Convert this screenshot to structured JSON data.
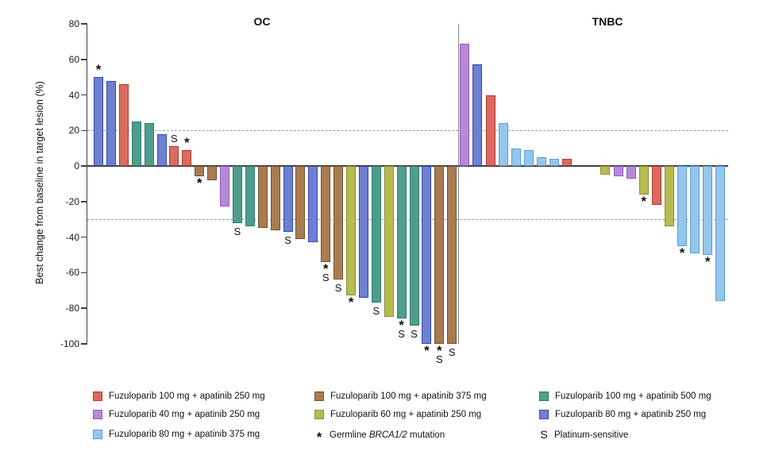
{
  "chart_data": {
    "type": "bar",
    "subtype": "waterfall",
    "ylabel": "Best change from baseline in target lesion (%)",
    "ylim": [
      -100,
      80
    ],
    "yticks": [
      80,
      60,
      40,
      20,
      0,
      -20,
      -40,
      -60,
      -80,
      -100
    ],
    "thresholds_dashed": [
      20,
      -30
    ],
    "grid": "off",
    "legend_position": "bottom",
    "palette": {
      "f100a250": {
        "label": "Fuzuloparib 100 mg + apatinib 250 mg",
        "fill": "#DB6A60",
        "stroke": "#AF3A31"
      },
      "f40a250": {
        "label": "Fuzuloparib 40 mg + apatinib 250 mg",
        "fill": "#B78AD8",
        "stroke": "#9257BE"
      },
      "f80a375": {
        "label": "Fuzuloparib 80 mg + apatinib 375 mg",
        "fill": "#95C6EE",
        "stroke": "#5B9BD5"
      },
      "f100a375": {
        "label": "Fuzuloparib 100 mg + apatinib 375 mg",
        "fill": "#A87C50",
        "stroke": "#73532F"
      },
      "f60a250": {
        "label": "Fuzuloparib 60 mg + apatinib 250 mg",
        "fill": "#B6BB52",
        "stroke": "#8C9130"
      },
      "f100a500": {
        "label": "Fuzuloparib 100 mg + apatinib 500 mg",
        "fill": "#4E9D8E",
        "stroke": "#2F7D6E"
      },
      "f80a250": {
        "label": "Fuzuloparib 80 mg + apatinib 250 mg",
        "fill": "#6E80D1",
        "stroke": "#3647B2"
      }
    },
    "markers": {
      "*": "Germline BRCA1/2 mutation",
      "S": "Platinum-sensitive"
    },
    "groups": [
      {
        "title": "OC",
        "bars": [
          {
            "regimen": "f80a250",
            "value": 50,
            "marks": [
              "*"
            ]
          },
          {
            "regimen": "f80a250",
            "value": 48,
            "marks": []
          },
          {
            "regimen": "f100a250",
            "value": 46,
            "marks": []
          },
          {
            "regimen": "f100a500",
            "value": 25,
            "marks": []
          },
          {
            "regimen": "f100a500",
            "value": 24,
            "marks": []
          },
          {
            "regimen": "f80a250",
            "value": 18,
            "marks": []
          },
          {
            "regimen": "f100a250",
            "value": 11,
            "marks": [
              "S"
            ]
          },
          {
            "regimen": "f100a250",
            "value": 9,
            "marks": [
              "*"
            ]
          },
          {
            "regimen": "f100a375",
            "value": -6,
            "marks": [
              "*"
            ]
          },
          {
            "regimen": "f100a375",
            "value": -8,
            "marks": []
          },
          {
            "regimen": "f40a250",
            "value": -23,
            "marks": []
          },
          {
            "regimen": "f100a500",
            "value": -32,
            "marks": [
              "S"
            ]
          },
          {
            "regimen": "f100a500",
            "value": -34,
            "marks": []
          },
          {
            "regimen": "f100a375",
            "value": -35,
            "marks": []
          },
          {
            "regimen": "f100a375",
            "value": -36,
            "marks": []
          },
          {
            "regimen": "f80a250",
            "value": -37,
            "marks": [
              "S"
            ]
          },
          {
            "regimen": "f100a375",
            "value": -41,
            "marks": []
          },
          {
            "regimen": "f80a250",
            "value": -43,
            "marks": []
          },
          {
            "regimen": "f100a375",
            "value": -54,
            "marks": [
              "*",
              "S"
            ]
          },
          {
            "regimen": "f100a375",
            "value": -64,
            "marks": [
              "S"
            ]
          },
          {
            "regimen": "f60a250",
            "value": -73,
            "marks": [
              "*"
            ]
          },
          {
            "regimen": "f80a250",
            "value": -74,
            "marks": []
          },
          {
            "regimen": "f100a500",
            "value": -77,
            "marks": [
              "S"
            ]
          },
          {
            "regimen": "f60a250",
            "value": -85,
            "marks": []
          },
          {
            "regimen": "f100a500",
            "value": -86,
            "marks": [
              "*",
              "S"
            ]
          },
          {
            "regimen": "f100a500",
            "value": -90,
            "marks": [
              "S"
            ]
          },
          {
            "regimen": "f80a250",
            "value": -100,
            "marks": [
              "*"
            ]
          },
          {
            "regimen": "f100a375",
            "value": -100,
            "marks": [
              "*",
              "S"
            ]
          },
          {
            "regimen": "f100a375",
            "value": -100,
            "marks": [
              "S"
            ]
          }
        ]
      },
      {
        "title": "TNBC",
        "bars": [
          {
            "regimen": "f40a250",
            "value": 69,
            "marks": []
          },
          {
            "regimen": "f80a250",
            "value": 57,
            "marks": []
          },
          {
            "regimen": "f100a250",
            "value": 40,
            "marks": []
          },
          {
            "regimen": "f80a375",
            "value": 24,
            "marks": []
          },
          {
            "regimen": "f80a375",
            "value": 10,
            "marks": []
          },
          {
            "regimen": "f80a375",
            "value": 9,
            "marks": []
          },
          {
            "regimen": "f80a375",
            "value": 5,
            "marks": []
          },
          {
            "regimen": "f80a375",
            "value": 4,
            "marks": []
          },
          {
            "regimen": "f100a250",
            "value": 4,
            "marks": []
          },
          {
            "regimen": "",
            "value": 0,
            "marks": []
          },
          {
            "regimen": "",
            "value": 0,
            "marks": []
          },
          {
            "regimen": "f60a250",
            "value": -5,
            "marks": []
          },
          {
            "regimen": "f40a250",
            "value": -6,
            "marks": []
          },
          {
            "regimen": "f40a250",
            "value": -7,
            "marks": []
          },
          {
            "regimen": "f60a250",
            "value": -16,
            "marks": [
              "*"
            ]
          },
          {
            "regimen": "f100a250",
            "value": -22,
            "marks": []
          },
          {
            "regimen": "f60a250",
            "value": -34,
            "marks": []
          },
          {
            "regimen": "f80a375",
            "value": -45,
            "marks": [
              "*"
            ]
          },
          {
            "regimen": "f80a375",
            "value": -49,
            "marks": []
          },
          {
            "regimen": "f80a375",
            "value": -50,
            "marks": [
              "*"
            ]
          },
          {
            "regimen": "f80a375",
            "value": -76,
            "marks": []
          }
        ]
      }
    ],
    "legend": {
      "columns": [
        [
          {
            "type": "swatch",
            "regimen": "f100a250"
          },
          {
            "type": "swatch",
            "regimen": "f40a250"
          },
          {
            "type": "swatch",
            "regimen": "f80a375"
          }
        ],
        [
          {
            "type": "swatch",
            "regimen": "f100a375"
          },
          {
            "type": "swatch",
            "regimen": "f60a250"
          },
          {
            "type": "marker",
            "symbol": "*",
            "prefix": "Germline ",
            "italic": "BRCA1/2",
            "suffix": " mutation"
          }
        ],
        [
          {
            "type": "swatch",
            "regimen": "f100a500"
          },
          {
            "type": "swatch",
            "regimen": "f80a250"
          },
          {
            "type": "marker",
            "symbol": "S",
            "label": "Platinum-sensitive"
          }
        ]
      ]
    }
  }
}
